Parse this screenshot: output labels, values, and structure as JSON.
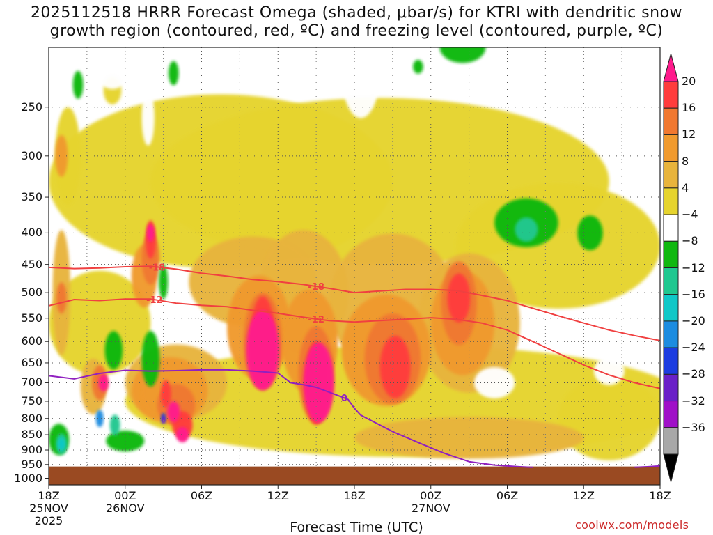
{
  "chart_data": {
    "type": "heatmap",
    "title_line1": "2025112518 HRRR Forecast Omega (shaded, μbar/s) for KTRI with dendritic snow",
    "title_line2": "growth region (contoured, red, ºC) and freezing level (contoured, purple, ºC)",
    "xlabel": "Forecast Time (UTC)",
    "ylabel": "",
    "x_ticks": [
      {
        "hour": 0,
        "line1": "18Z",
        "line2": "25NOV",
        "line3": "2025"
      },
      {
        "hour": 6,
        "line1": "00Z",
        "line2": "26NOV",
        "line3": ""
      },
      {
        "hour": 12,
        "line1": "06Z",
        "line2": "",
        "line3": ""
      },
      {
        "hour": 18,
        "line1": "12Z",
        "line2": "",
        "line3": ""
      },
      {
        "hour": 24,
        "line1": "18Z",
        "line2": "",
        "line3": ""
      },
      {
        "hour": 30,
        "line1": "00Z",
        "line2": "27NOV",
        "line3": ""
      },
      {
        "hour": 36,
        "line1": "06Z",
        "line2": "",
        "line3": ""
      },
      {
        "hour": 42,
        "line1": "12Z",
        "line2": "",
        "line3": ""
      },
      {
        "hour": 48,
        "line1": "18Z",
        "line2": "",
        "line3": ""
      }
    ],
    "xlim": [
      0,
      48
    ],
    "y_ticks": [
      250,
      300,
      350,
      400,
      450,
      500,
      550,
      600,
      650,
      700,
      750,
      800,
      850,
      900,
      950,
      1000
    ],
    "ylim": [
      200,
      1025
    ],
    "y_scale": "log",
    "grid": true,
    "surface_pressure": 957,
    "colorbar": {
      "labels": [
        "20",
        "16",
        "12",
        "8",
        "4",
        "−4",
        "−8",
        "−12",
        "−16",
        "−20",
        "−24",
        "−28",
        "−32",
        "−36"
      ],
      "colors": [
        "#ff1a8c",
        "#ff3c3c",
        "#f07830",
        "#f09a2e",
        "#e8b43c",
        "#e6d42e",
        "#ffffff",
        "#10b810",
        "#20c890",
        "#10c8c8",
        "#1c8ce0",
        "#1c3ce0",
        "#6a20c8",
        "#a010c8",
        "#a8a8a8",
        "#000000"
      ]
    },
    "series": [
      {
        "name": "-18",
        "color": "#f04040",
        "x": [
          0,
          2,
          4,
          6,
          8,
          10,
          12,
          14,
          16,
          18,
          20,
          22,
          24,
          26,
          28,
          30,
          32,
          34,
          36,
          38,
          40,
          42,
          44,
          46,
          48
        ],
        "y": [
          455,
          457,
          456,
          454,
          453,
          458,
          465,
          470,
          476,
          480,
          485,
          492,
          500,
          497,
          494,
          494,
          496,
          505,
          515,
          530,
          545,
          560,
          575,
          587,
          598
        ]
      },
      {
        "name": "-12",
        "color": "#f04040",
        "x": [
          0,
          2,
          4,
          6,
          8,
          10,
          12,
          14,
          16,
          18,
          20,
          22,
          24,
          26,
          28,
          30,
          32,
          34,
          36,
          38,
          40,
          42,
          44,
          46,
          48
        ],
        "y": [
          525,
          513,
          515,
          512,
          512,
          520,
          524,
          527,
          534,
          540,
          548,
          555,
          558,
          555,
          552,
          549,
          552,
          560,
          575,
          600,
          627,
          655,
          680,
          700,
          715
        ]
      },
      {
        "name": "0",
        "color": "#9020c0",
        "x": [
          0,
          2,
          4,
          6,
          8,
          10,
          12,
          14,
          16,
          18,
          19,
          20,
          21,
          22,
          23,
          23.5,
          24,
          24.5,
          25,
          27,
          29,
          31,
          33,
          35,
          37,
          38
        ],
        "y": [
          682,
          690,
          676,
          668,
          670,
          669,
          667,
          667,
          670,
          675,
          700,
          705,
          712,
          725,
          738,
          745,
          770,
          790,
          800,
          840,
          875,
          910,
          940,
          952,
          958,
          960
        ]
      },
      {
        "name": "",
        "color": "#9020c0",
        "x": [
          46,
          47,
          48
        ],
        "y": [
          960,
          958,
          955
        ]
      }
    ]
  }
}
